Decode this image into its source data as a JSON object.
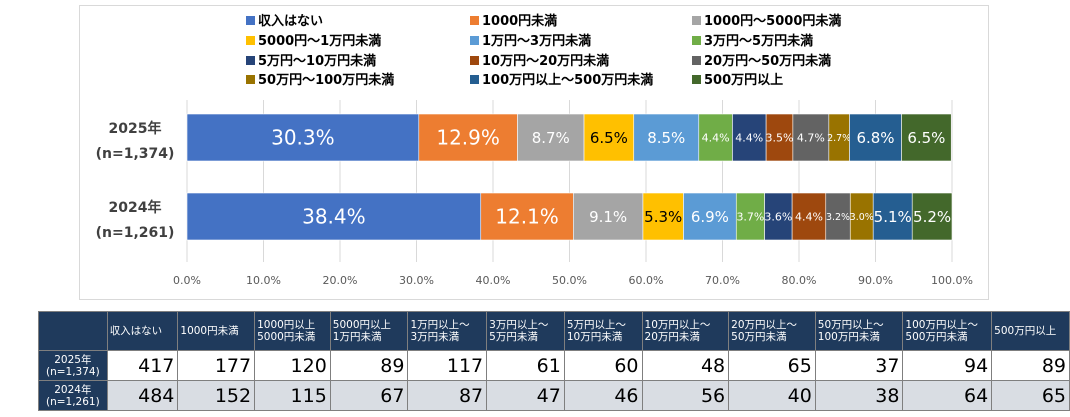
{
  "chart_data": {
    "type": "bar",
    "orientation": "horizontal-stacked-100",
    "categories": [
      "2025年\n(n=1,374)",
      "2024年\n(n=1,261)"
    ],
    "x_ticks": [
      "0.0%",
      "10.0%",
      "20.0%",
      "30.0%",
      "40.0%",
      "50.0%",
      "60.0%",
      "70.0%",
      "80.0%",
      "90.0%",
      "100.0%"
    ],
    "xlim": [
      0,
      100
    ],
    "grid": "vertical",
    "legend_position": "top",
    "series": [
      {
        "name": "収入はない",
        "color": "#4472c4",
        "values": [
          30.3,
          38.4
        ],
        "labels": [
          "30.3%",
          "38.4%"
        ]
      },
      {
        "name": "1000円未満",
        "color": "#ed7d31",
        "values": [
          12.9,
          12.1
        ],
        "labels": [
          "12.9%",
          "12.1%"
        ]
      },
      {
        "name": "1000円～5000円未満",
        "color": "#a5a5a5",
        "values": [
          8.7,
          9.1
        ],
        "labels": [
          "8.7%",
          "9.1%"
        ]
      },
      {
        "name": "5000円～1万円未満",
        "color": "#ffc000",
        "values": [
          6.5,
          5.3
        ],
        "labels": [
          "6.5%",
          "5.3%"
        ]
      },
      {
        "name": "1万円～3万円未満",
        "color": "#5b9bd5",
        "values": [
          8.5,
          6.9
        ],
        "labels": [
          "8.5%",
          "6.9%"
        ]
      },
      {
        "name": "3万円～5万円未満",
        "color": "#70ad47",
        "values": [
          4.4,
          3.7
        ],
        "labels": [
          "4.4%",
          "3.7%"
        ]
      },
      {
        "name": "5万円～10万円未満",
        "color": "#264478",
        "values": [
          4.4,
          3.6
        ],
        "labels": [
          "4.4%",
          "3.6%"
        ]
      },
      {
        "name": "10万円～20万円未満",
        "color": "#9e480e",
        "values": [
          3.5,
          4.4
        ],
        "labels": [
          "3.5%",
          "4.4%"
        ]
      },
      {
        "name": "20万円～50万円未満",
        "color": "#636363",
        "values": [
          4.7,
          3.2
        ],
        "labels": [
          "4.7%",
          "3.2%"
        ]
      },
      {
        "name": "50万円～100万円未満",
        "color": "#997300",
        "values": [
          2.7,
          3.0
        ],
        "labels": [
          "2.7%",
          "3.0%"
        ]
      },
      {
        "name": "100万円以上～500万円未満",
        "color": "#255e91",
        "values": [
          6.8,
          5.1
        ],
        "labels": [
          "6.8%",
          "5.1%"
        ]
      },
      {
        "name": "500万円以上",
        "color": "#43682b",
        "values": [
          6.5,
          5.2
        ],
        "labels": [
          "6.5%",
          "5.2%"
        ]
      }
    ]
  },
  "table": {
    "headers": [
      "収入はない",
      "1000円未満",
      "1000円以上\n5000円未満",
      "5000円以上\n1万円未満",
      "1万円以上～\n3万円未満",
      "3万円以上～\n5万円未満",
      "5万円以上～\n10万円未満",
      "10万円以上～\n20万円未満",
      "20万円以上～\n50万円未満",
      "50万円以上～\n100万円未満",
      "100万円以上～\n500万円未満",
      "500万円以上"
    ],
    "rows": [
      {
        "label": "2025年\n(n=1,374)",
        "values": [
          "417",
          "177",
          "120",
          "89",
          "117",
          "61",
          "60",
          "48",
          "65",
          "37",
          "94",
          "89"
        ]
      },
      {
        "label": "2024年\n(n=1,261)",
        "values": [
          "484",
          "152",
          "115",
          "67",
          "87",
          "47",
          "46",
          "56",
          "40",
          "38",
          "64",
          "65"
        ]
      }
    ]
  }
}
